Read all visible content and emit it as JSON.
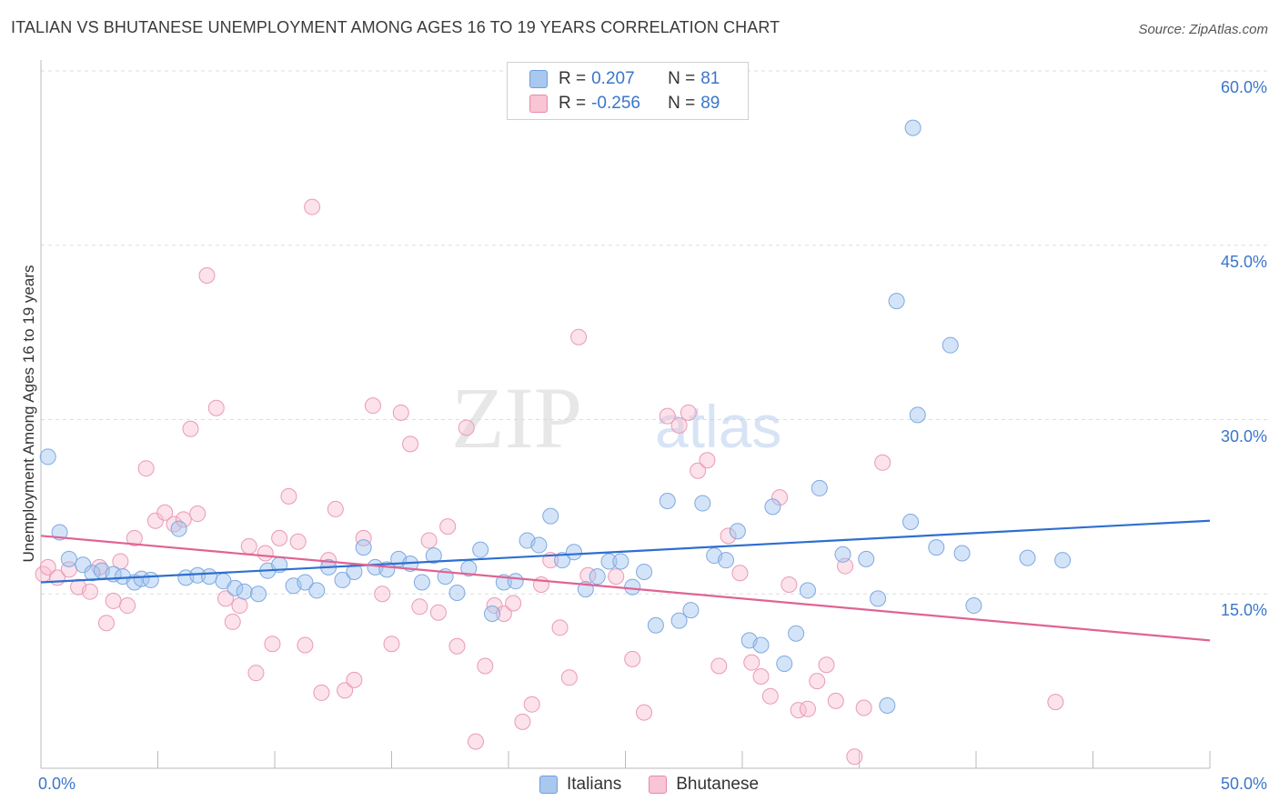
{
  "title": "ITALIAN VS BHUTANESE UNEMPLOYMENT AMONG AGES 16 TO 19 YEARS CORRELATION CHART",
  "source": "Source: ZipAtlas.com",
  "watermark": {
    "zip": "ZIP",
    "atlas": "atlas"
  },
  "legend": {
    "rows": [
      {
        "r_label": "R =",
        "r_value": "0.207",
        "n_label": "N =",
        "n_value": "81",
        "color": "#a9c8f0",
        "border": "#6f9fdc"
      },
      {
        "r_label": "R =",
        "r_value": "-0.256",
        "n_label": "N =",
        "n_value": "89",
        "color": "#f9c4d4",
        "border": "#e68aa8"
      }
    ]
  },
  "bottom_legend": [
    {
      "label": "Italians",
      "color": "#a9c8f0",
      "border": "#6f9fdc"
    },
    {
      "label": "Bhutanese",
      "color": "#f9c4d4",
      "border": "#e68aa8"
    }
  ],
  "colors": {
    "italians_fill": "rgba(160,195,240,0.45)",
    "italians_stroke": "#7ea9e0",
    "italians_line": "#2e6fcf",
    "bhutanese_fill": "rgba(248,190,208,0.45)",
    "bhutanese_stroke": "#ea9ab5",
    "bhutanese_line": "#e06394",
    "tick_label": "#3a76c9",
    "grid": "#dddddd"
  },
  "chart_data": {
    "type": "scatter",
    "title": "ITALIAN VS BHUTANESE UNEMPLOYMENT AMONG AGES 16 TO 19 YEARS CORRELATION CHART",
    "xlabel": "",
    "ylabel": "Unemployment Among Ages 16 to 19 years",
    "xlim": [
      0,
      50
    ],
    "ylim": [
      0,
      60
    ],
    "x_tick_labels": [
      "0.0%",
      "50.0%"
    ],
    "y_ticks": [
      15,
      30,
      45,
      60
    ],
    "y_tick_labels": [
      "15.0%",
      "30.0%",
      "45.0%",
      "60.0%"
    ],
    "grid": "horizontal dashed",
    "legend_position": "top-center",
    "series": [
      {
        "name": "Italians",
        "trend": {
          "x": [
            0,
            50
          ],
          "y": [
            16.0,
            21.3
          ]
        },
        "points": [
          [
            0.3,
            26.8
          ],
          [
            0.8,
            20.3
          ],
          [
            1.2,
            18.0
          ],
          [
            1.8,
            17.5
          ],
          [
            2.2,
            16.8
          ],
          [
            2.6,
            17.0
          ],
          [
            3.1,
            16.7
          ],
          [
            3.5,
            16.5
          ],
          [
            4.0,
            16.0
          ],
          [
            4.3,
            16.3
          ],
          [
            4.7,
            16.2
          ],
          [
            5.9,
            20.6
          ],
          [
            6.2,
            16.4
          ],
          [
            6.7,
            16.6
          ],
          [
            7.2,
            16.5
          ],
          [
            7.8,
            16.1
          ],
          [
            8.3,
            15.5
          ],
          [
            8.7,
            15.2
          ],
          [
            9.3,
            15.0
          ],
          [
            9.7,
            17.0
          ],
          [
            10.2,
            17.5
          ],
          [
            10.8,
            15.7
          ],
          [
            11.3,
            16.0
          ],
          [
            11.8,
            15.3
          ],
          [
            12.3,
            17.3
          ],
          [
            12.9,
            16.2
          ],
          [
            13.4,
            16.9
          ],
          [
            13.8,
            19.0
          ],
          [
            14.3,
            17.3
          ],
          [
            14.8,
            17.1
          ],
          [
            15.3,
            18.0
          ],
          [
            15.8,
            17.6
          ],
          [
            16.3,
            16.0
          ],
          [
            16.8,
            18.3
          ],
          [
            17.3,
            16.5
          ],
          [
            17.8,
            15.1
          ],
          [
            18.3,
            17.2
          ],
          [
            18.8,
            18.8
          ],
          [
            19.3,
            13.3
          ],
          [
            19.8,
            16.0
          ],
          [
            20.3,
            16.1
          ],
          [
            20.8,
            19.6
          ],
          [
            21.3,
            19.2
          ],
          [
            21.8,
            21.7
          ],
          [
            22.3,
            17.9
          ],
          [
            22.8,
            18.6
          ],
          [
            23.3,
            15.4
          ],
          [
            23.8,
            16.5
          ],
          [
            24.3,
            17.8
          ],
          [
            24.8,
            17.8
          ],
          [
            25.3,
            15.6
          ],
          [
            25.8,
            16.9
          ],
          [
            26.3,
            12.3
          ],
          [
            26.8,
            23.0
          ],
          [
            27.3,
            12.7
          ],
          [
            27.8,
            13.6
          ],
          [
            28.3,
            22.8
          ],
          [
            28.8,
            18.3
          ],
          [
            29.3,
            17.9
          ],
          [
            29.8,
            20.4
          ],
          [
            30.3,
            11.0
          ],
          [
            30.8,
            10.6
          ],
          [
            31.3,
            22.5
          ],
          [
            31.8,
            9.0
          ],
          [
            32.3,
            11.6
          ],
          [
            32.8,
            15.3
          ],
          [
            33.3,
            24.1
          ],
          [
            34.3,
            18.4
          ],
          [
            35.3,
            18.0
          ],
          [
            35.8,
            14.6
          ],
          [
            36.2,
            5.4
          ],
          [
            36.6,
            40.2
          ],
          [
            37.2,
            21.2
          ],
          [
            37.5,
            30.4
          ],
          [
            38.3,
            19.0
          ],
          [
            38.9,
            36.4
          ],
          [
            39.4,
            18.5
          ],
          [
            39.9,
            14.0
          ],
          [
            42.2,
            18.1
          ],
          [
            43.7,
            17.9
          ],
          [
            37.3,
            55.1
          ]
        ]
      },
      {
        "name": "Bhutanese",
        "trend": {
          "x": [
            0,
            50
          ],
          "y": [
            20.0,
            11.0
          ]
        },
        "points": [
          [
            0.1,
            16.7
          ],
          [
            0.3,
            17.3
          ],
          [
            0.7,
            16.4
          ],
          [
            1.2,
            17.1
          ],
          [
            1.6,
            15.6
          ],
          [
            2.1,
            15.2
          ],
          [
            2.5,
            17.3
          ],
          [
            2.8,
            12.5
          ],
          [
            3.1,
            14.4
          ],
          [
            3.4,
            17.8
          ],
          [
            3.7,
            14.0
          ],
          [
            4.0,
            19.8
          ],
          [
            4.5,
            25.8
          ],
          [
            4.9,
            21.3
          ],
          [
            5.3,
            22.0
          ],
          [
            5.7,
            21.0
          ],
          [
            6.1,
            21.4
          ],
          [
            6.4,
            29.2
          ],
          [
            6.7,
            21.9
          ],
          [
            7.1,
            42.4
          ],
          [
            7.5,
            31.0
          ],
          [
            7.9,
            14.6
          ],
          [
            8.2,
            12.6
          ],
          [
            8.5,
            14.0
          ],
          [
            8.9,
            19.1
          ],
          [
            9.2,
            8.2
          ],
          [
            9.6,
            18.5
          ],
          [
            9.9,
            10.7
          ],
          [
            10.2,
            19.8
          ],
          [
            10.6,
            23.4
          ],
          [
            11.0,
            19.5
          ],
          [
            11.3,
            10.6
          ],
          [
            11.6,
            48.3
          ],
          [
            12.0,
            6.5
          ],
          [
            12.3,
            17.9
          ],
          [
            12.6,
            22.3
          ],
          [
            13.0,
            6.7
          ],
          [
            13.4,
            7.6
          ],
          [
            13.8,
            19.8
          ],
          [
            14.2,
            31.2
          ],
          [
            14.6,
            15.0
          ],
          [
            15.0,
            10.7
          ],
          [
            15.4,
            30.6
          ],
          [
            15.8,
            27.9
          ],
          [
            16.2,
            13.9
          ],
          [
            16.6,
            19.6
          ],
          [
            17.0,
            13.4
          ],
          [
            17.4,
            20.8
          ],
          [
            17.8,
            10.5
          ],
          [
            18.2,
            29.3
          ],
          [
            18.6,
            2.3
          ],
          [
            19.0,
            8.8
          ],
          [
            19.4,
            14.0
          ],
          [
            19.8,
            13.3
          ],
          [
            20.2,
            14.2
          ],
          [
            20.6,
            4.0
          ],
          [
            21.0,
            5.5
          ],
          [
            21.4,
            15.8
          ],
          [
            21.8,
            17.9
          ],
          [
            22.2,
            12.1
          ],
          [
            22.6,
            7.8
          ],
          [
            23.0,
            37.1
          ],
          [
            23.4,
            16.6
          ],
          [
            24.6,
            16.5
          ],
          [
            25.3,
            9.4
          ],
          [
            25.8,
            4.8
          ],
          [
            26.8,
            30.3
          ],
          [
            27.3,
            29.5
          ],
          [
            27.7,
            30.6
          ],
          [
            28.1,
            25.6
          ],
          [
            28.5,
            26.5
          ],
          [
            29.0,
            8.8
          ],
          [
            29.4,
            20.0
          ],
          [
            29.9,
            16.8
          ],
          [
            30.4,
            9.1
          ],
          [
            30.8,
            7.9
          ],
          [
            31.2,
            6.2
          ],
          [
            31.6,
            23.3
          ],
          [
            32.0,
            15.8
          ],
          [
            32.4,
            5.0
          ],
          [
            32.8,
            5.1
          ],
          [
            33.2,
            7.5
          ],
          [
            33.6,
            8.9
          ],
          [
            34.0,
            5.8
          ],
          [
            34.4,
            17.4
          ],
          [
            34.8,
            1.0
          ],
          [
            35.2,
            5.2
          ],
          [
            36.0,
            26.3
          ],
          [
            43.4,
            5.7
          ]
        ]
      }
    ]
  }
}
